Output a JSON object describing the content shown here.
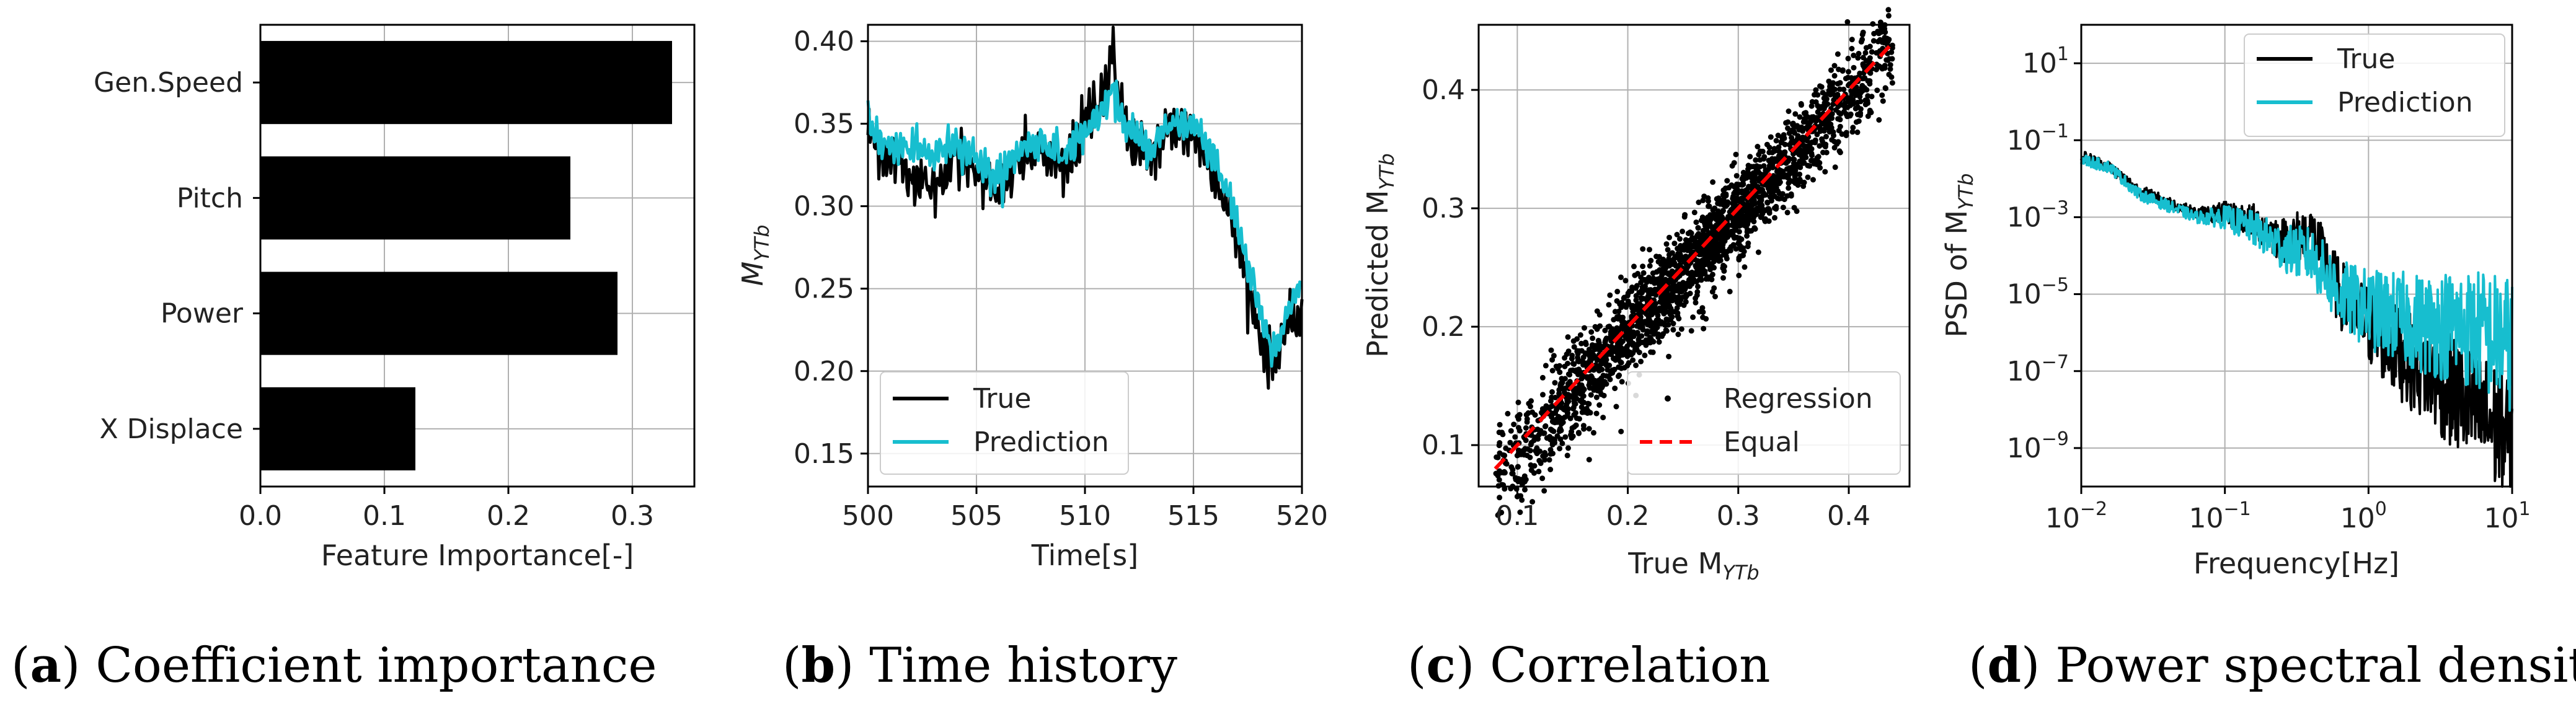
{
  "colors": {
    "true": "#000000",
    "prediction": "#17becf",
    "equal": "#ff0000",
    "grid": "#b0b0b0",
    "bar": "#000000"
  },
  "captions": [
    {
      "letter": "a",
      "text": "Coefficient importance"
    },
    {
      "letter": "b",
      "text": "Time history"
    },
    {
      "letter": "c",
      "text": "Correlation"
    },
    {
      "letter": "d",
      "text": "Power spectral density"
    }
  ],
  "chart_data": [
    {
      "type": "bar",
      "orientation": "horizontal",
      "categories": [
        "Gen.Speed",
        "Pitch",
        "Power",
        "X Displace"
      ],
      "values": [
        0.332,
        0.25,
        0.288,
        0.125
      ],
      "xlabel": "Feature Importance[-]",
      "ylabel": "",
      "xlim": [
        0,
        0.35
      ],
      "xticks": [
        "0.0",
        "0.1",
        "0.2",
        "0.3"
      ],
      "grid": true
    },
    {
      "type": "line",
      "xlabel": "Time[s]",
      "ylabel": "M",
      "ylabel_sub": "YTb",
      "xlim": [
        500,
        520
      ],
      "ylim": [
        0.13,
        0.41
      ],
      "xticks": [
        "500",
        "505",
        "510",
        "515",
        "520"
      ],
      "yticks": [
        "0.15",
        "0.20",
        "0.25",
        "0.30",
        "0.35",
        "0.40"
      ],
      "legend": "lower-left",
      "series": [
        {
          "name": "True",
          "x": [
            500,
            501,
            502,
            503,
            504,
            505,
            506,
            507,
            508,
            509,
            510,
            511,
            511.3,
            512,
            513,
            514,
            515,
            516,
            517,
            518,
            518.6,
            519,
            520
          ],
          "y": [
            0.345,
            0.33,
            0.32,
            0.31,
            0.33,
            0.325,
            0.305,
            0.33,
            0.335,
            0.32,
            0.35,
            0.375,
            0.39,
            0.34,
            0.33,
            0.35,
            0.345,
            0.32,
            0.28,
            0.225,
            0.205,
            0.22,
            0.235
          ]
        },
        {
          "name": "Prediction",
          "x": [
            500,
            501,
            502,
            503,
            504,
            505,
            506,
            507,
            508,
            509,
            510,
            511,
            511.3,
            512,
            513,
            514,
            515,
            516,
            517,
            518,
            518.6,
            519,
            520
          ],
          "y": [
            0.35,
            0.335,
            0.335,
            0.33,
            0.34,
            0.33,
            0.315,
            0.335,
            0.34,
            0.33,
            0.345,
            0.36,
            0.37,
            0.345,
            0.335,
            0.35,
            0.35,
            0.33,
            0.29,
            0.24,
            0.21,
            0.22,
            0.255
          ]
        }
      ],
      "grid": true
    },
    {
      "type": "scatter",
      "xlabel": "True M",
      "xlabel_sub": "YTb",
      "ylabel": "Predicted M",
      "ylabel_sub": "YTb",
      "xlim": [
        0.065,
        0.455
      ],
      "ylim": [
        0.065,
        0.455
      ],
      "xticks": [
        "0.1",
        "0.2",
        "0.3",
        "0.4"
      ],
      "yticks": [
        "0.1",
        "0.2",
        "0.3",
        "0.4"
      ],
      "legend": "lower-right",
      "series": [
        {
          "name": "Regression",
          "style": "points",
          "x_range": [
            0.08,
            0.44
          ],
          "spread": 0.035
        },
        {
          "name": "Equal",
          "style": "dashed-line",
          "x": [
            0.08,
            0.44
          ],
          "y": [
            0.08,
            0.44
          ]
        }
      ],
      "grid": true
    },
    {
      "type": "line",
      "xscale": "log",
      "yscale": "log",
      "xlabel": "Frequency[Hz]",
      "ylabel": "PSD of M",
      "ylabel_sub": "YTb",
      "xlim_exp": [
        -2,
        1
      ],
      "ylim_exp": [
        -10,
        2
      ],
      "xticks": [
        {
          "base": "10",
          "exp": "−2"
        },
        {
          "base": "10",
          "exp": "−1"
        },
        {
          "base": "10",
          "exp": "0"
        },
        {
          "base": "10",
          "exp": "1"
        }
      ],
      "yticks": [
        {
          "base": "10",
          "exp": "1"
        },
        {
          "base": "10",
          "exp": "−1"
        },
        {
          "base": "10",
          "exp": "−3"
        },
        {
          "base": "10",
          "exp": "−5"
        },
        {
          "base": "10",
          "exp": "−7"
        },
        {
          "base": "10",
          "exp": "−9"
        }
      ],
      "legend": "top-right",
      "series": [
        {
          "name": "True",
          "log10_freq": [
            -2,
            -1.8,
            -1.6,
            -1.4,
            -1.2,
            -1,
            -0.8,
            -0.6,
            -0.4,
            -0.2,
            0,
            0.2,
            0.4,
            0.6,
            0.8,
            1
          ],
          "log10_psd": [
            -1.4,
            -1.7,
            -2.3,
            -2.6,
            -2.9,
            -2.9,
            -3.1,
            -3.6,
            -3.4,
            -5.0,
            -5.8,
            -6.5,
            -7.0,
            -7.6,
            -8.2,
            -8.8
          ]
        },
        {
          "name": "Prediction",
          "log10_freq": [
            -2,
            -1.8,
            -1.6,
            -1.4,
            -1.2,
            -1,
            -0.8,
            -0.6,
            -0.4,
            -0.2,
            0,
            0.2,
            0.4,
            0.6,
            0.8,
            1
          ],
          "log10_psd": [
            -1.5,
            -1.7,
            -2.4,
            -2.7,
            -3.0,
            -3.0,
            -3.3,
            -3.8,
            -4.0,
            -5.0,
            -5.4,
            -5.6,
            -5.8,
            -5.8,
            -6.0,
            -6.3
          ]
        }
      ],
      "grid": true
    }
  ]
}
